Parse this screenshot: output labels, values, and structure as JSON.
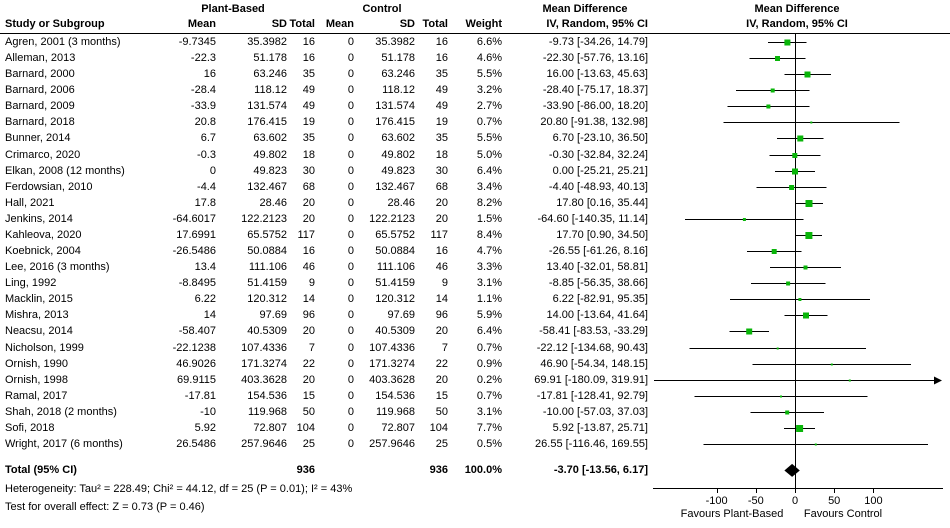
{
  "header": {
    "group_plant_based": "Plant-Based",
    "group_control": "Control",
    "md_text_title": "Mean Difference",
    "md_text_sub": "IV, Random, 95% CI",
    "md_plot_title": "Mean Difference",
    "md_plot_sub": "IV, Random, 95% CI",
    "study": "Study or Subgroup",
    "mean": "Mean",
    "sd": "SD",
    "total": "Total",
    "weight": "Weight"
  },
  "footer": {
    "total_label": "Total (95% CI)",
    "total_pb": "936",
    "total_c": "936",
    "total_weight": "100.0%",
    "total_md": "-3.70 [-13.56, 6.17]",
    "heterogeneity": "Heterogeneity: Tau² = 228.49; Chi² = 44.12, df = 25 (P = 0.01); I² = 43%",
    "overall_effect": "Test for overall effect: Z = 0.73 (P = 0.46)"
  },
  "chart_data": {
    "type": "forest",
    "title": "Mean Difference, IV, Random, 95% CI",
    "axis": {
      "ticks": [
        -100,
        -50,
        0,
        50,
        100
      ],
      "favours_left": "Favours Plant-Based",
      "favours_right": "Favours Control"
    },
    "colors": {
      "square": "#0ab50a",
      "diamond": "#000000",
      "line": "#000000"
    },
    "studies": [
      {
        "name": "Agren, 2001 (3 months)",
        "pb_mean": "-9.7345",
        "pb_sd": "35.3982",
        "pb_total": "16",
        "c_mean": "0",
        "c_sd": "35.3982",
        "c_total": "16",
        "weight_pct": 6.6,
        "weight": "6.6%",
        "md": -9.73,
        "lo": -34.26,
        "hi": 14.79,
        "md_label": "-9.73 [-34.26, 14.79]"
      },
      {
        "name": "Alleman, 2013",
        "pb_mean": "-22.3",
        "pb_sd": "51.178",
        "pb_total": "16",
        "c_mean": "0",
        "c_sd": "51.178",
        "c_total": "16",
        "weight_pct": 4.6,
        "weight": "4.6%",
        "md": -22.3,
        "lo": -57.76,
        "hi": 13.16,
        "md_label": "-22.30 [-57.76, 13.16]"
      },
      {
        "name": "Barnard, 2000",
        "pb_mean": "16",
        "pb_sd": "63.246",
        "pb_total": "35",
        "c_mean": "0",
        "c_sd": "63.246",
        "c_total": "35",
        "weight_pct": 5.5,
        "weight": "5.5%",
        "md": 16.0,
        "lo": -13.63,
        "hi": 45.63,
        "md_label": "16.00 [-13.63, 45.63]"
      },
      {
        "name": "Barnard, 2006",
        "pb_mean": "-28.4",
        "pb_sd": "118.12",
        "pb_total": "49",
        "c_mean": "0",
        "c_sd": "118.12",
        "c_total": "49",
        "weight_pct": 3.2,
        "weight": "3.2%",
        "md": -28.4,
        "lo": -75.17,
        "hi": 18.37,
        "md_label": "-28.40 [-75.17, 18.37]"
      },
      {
        "name": "Barnard, 2009",
        "pb_mean": "-33.9",
        "pb_sd": "131.574",
        "pb_total": "49",
        "c_mean": "0",
        "c_sd": "131.574",
        "c_total": "49",
        "weight_pct": 2.7,
        "weight": "2.7%",
        "md": -33.9,
        "lo": -86.0,
        "hi": 18.2,
        "md_label": "-33.90 [-86.00, 18.20]"
      },
      {
        "name": "Barnard, 2018",
        "pb_mean": "20.8",
        "pb_sd": "176.415",
        "pb_total": "19",
        "c_mean": "0",
        "c_sd": "176.415",
        "c_total": "19",
        "weight_pct": 0.7,
        "weight": "0.7%",
        "md": 20.8,
        "lo": -91.38,
        "hi": 132.98,
        "md_label": "20.80 [-91.38, 132.98]"
      },
      {
        "name": "Bunner, 2014",
        "pb_mean": "6.7",
        "pb_sd": "63.602",
        "pb_total": "35",
        "c_mean": "0",
        "c_sd": "63.602",
        "c_total": "35",
        "weight_pct": 5.5,
        "weight": "5.5%",
        "md": 6.7,
        "lo": -23.1,
        "hi": 36.5,
        "md_label": "6.70 [-23.10, 36.50]"
      },
      {
        "name": "Crimarco, 2020",
        "pb_mean": "-0.3",
        "pb_sd": "49.802",
        "pb_total": "18",
        "c_mean": "0",
        "c_sd": "49.802",
        "c_total": "18",
        "weight_pct": 5.0,
        "weight": "5.0%",
        "md": -0.3,
        "lo": -32.84,
        "hi": 32.24,
        "md_label": "-0.30 [-32.84, 32.24]"
      },
      {
        "name": "Elkan, 2008 (12 months)",
        "pb_mean": "0",
        "pb_sd": "49.823",
        "pb_total": "30",
        "c_mean": "0",
        "c_sd": "49.823",
        "c_total": "30",
        "weight_pct": 6.4,
        "weight": "6.4%",
        "md": 0.0,
        "lo": -25.21,
        "hi": 25.21,
        "md_label": "0.00 [-25.21, 25.21]"
      },
      {
        "name": "Ferdowsian, 2010",
        "pb_mean": "-4.4",
        "pb_sd": "132.467",
        "pb_total": "68",
        "c_mean": "0",
        "c_sd": "132.467",
        "c_total": "68",
        "weight_pct": 3.4,
        "weight": "3.4%",
        "md": -4.4,
        "lo": -48.93,
        "hi": 40.13,
        "md_label": "-4.40 [-48.93, 40.13]"
      },
      {
        "name": "Hall, 2021",
        "pb_mean": "17.8",
        "pb_sd": "28.46",
        "pb_total": "20",
        "c_mean": "0",
        "c_sd": "28.46",
        "c_total": "20",
        "weight_pct": 8.2,
        "weight": "8.2%",
        "md": 17.8,
        "lo": 0.16,
        "hi": 35.44,
        "md_label": "17.80 [0.16, 35.44]"
      },
      {
        "name": "Jenkins, 2014",
        "pb_mean": "-64.6017",
        "pb_sd": "122.2123",
        "pb_total": "20",
        "c_mean": "0",
        "c_sd": "122.2123",
        "c_total": "20",
        "weight_pct": 1.5,
        "weight": "1.5%",
        "md": -64.6,
        "lo": -140.35,
        "hi": 11.14,
        "md_label": "-64.60 [-140.35, 11.14]"
      },
      {
        "name": "Kahleova, 2020",
        "pb_mean": "17.6991",
        "pb_sd": "65.5752",
        "pb_total": "117",
        "c_mean": "0",
        "c_sd": "65.5752",
        "c_total": "117",
        "weight_pct": 8.4,
        "weight": "8.4%",
        "md": 17.7,
        "lo": 0.9,
        "hi": 34.5,
        "md_label": "17.70 [0.90, 34.50]"
      },
      {
        "name": "Koebnick, 2004",
        "pb_mean": "-26.5486",
        "pb_sd": "50.0884",
        "pb_total": "16",
        "c_mean": "0",
        "c_sd": "50.0884",
        "c_total": "16",
        "weight_pct": 4.7,
        "weight": "4.7%",
        "md": -26.55,
        "lo": -61.26,
        "hi": 8.16,
        "md_label": "-26.55 [-61.26, 8.16]"
      },
      {
        "name": "Lee, 2016 (3 months)",
        "pb_mean": "13.4",
        "pb_sd": "111.106",
        "pb_total": "46",
        "c_mean": "0",
        "c_sd": "111.106",
        "c_total": "46",
        "weight_pct": 3.3,
        "weight": "3.3%",
        "md": 13.4,
        "lo": -32.01,
        "hi": 58.81,
        "md_label": "13.40 [-32.01, 58.81]"
      },
      {
        "name": "Ling, 1992",
        "pb_mean": "-8.8495",
        "pb_sd": "51.4159",
        "pb_total": "9",
        "c_mean": "0",
        "c_sd": "51.4159",
        "c_total": "9",
        "weight_pct": 3.1,
        "weight": "3.1%",
        "md": -8.85,
        "lo": -56.35,
        "hi": 38.66,
        "md_label": "-8.85 [-56.35, 38.66]"
      },
      {
        "name": "Macklin, 2015",
        "pb_mean": "6.22",
        "pb_sd": "120.312",
        "pb_total": "14",
        "c_mean": "0",
        "c_sd": "120.312",
        "c_total": "14",
        "weight_pct": 1.1,
        "weight": "1.1%",
        "md": 6.22,
        "lo": -82.91,
        "hi": 95.35,
        "md_label": "6.22 [-82.91, 95.35]"
      },
      {
        "name": "Mishra, 2013",
        "pb_mean": "14",
        "pb_sd": "97.69",
        "pb_total": "96",
        "c_mean": "0",
        "c_sd": "97.69",
        "c_total": "96",
        "weight_pct": 5.9,
        "weight": "5.9%",
        "md": 14.0,
        "lo": -13.64,
        "hi": 41.64,
        "md_label": "14.00 [-13.64, 41.64]"
      },
      {
        "name": "Neacsu, 2014",
        "pb_mean": "-58.407",
        "pb_sd": "40.5309",
        "pb_total": "20",
        "c_mean": "0",
        "c_sd": "40.5309",
        "c_total": "20",
        "weight_pct": 6.4,
        "weight": "6.4%",
        "md": -58.41,
        "lo": -83.53,
        "hi": -33.29,
        "md_label": "-58.41 [-83.53, -33.29]"
      },
      {
        "name": "Nicholson, 1999",
        "pb_mean": "-22.1238",
        "pb_sd": "107.4336",
        "pb_total": "7",
        "c_mean": "0",
        "c_sd": "107.4336",
        "c_total": "7",
        "weight_pct": 0.7,
        "weight": "0.7%",
        "md": -22.12,
        "lo": -134.68,
        "hi": 90.43,
        "md_label": "-22.12 [-134.68, 90.43]"
      },
      {
        "name": "Ornish, 1990",
        "pb_mean": "46.9026",
        "pb_sd": "171.3274",
        "pb_total": "22",
        "c_mean": "0",
        "c_sd": "171.3274",
        "c_total": "22",
        "weight_pct": 0.9,
        "weight": "0.9%",
        "md": 46.9,
        "lo": -54.34,
        "hi": 148.15,
        "md_label": "46.90 [-54.34, 148.15]"
      },
      {
        "name": "Ornish, 1998",
        "pb_mean": "69.9115",
        "pb_sd": "403.3628",
        "pb_total": "20",
        "c_mean": "0",
        "c_sd": "403.3628",
        "c_total": "20",
        "weight_pct": 0.2,
        "weight": "0.2%",
        "md": 69.91,
        "lo": -180.09,
        "hi": 319.91,
        "md_label": "69.91 [-180.09, 319.91]"
      },
      {
        "name": "Ramal, 2017",
        "pb_mean": "-17.81",
        "pb_sd": "154.536",
        "pb_total": "15",
        "c_mean": "0",
        "c_sd": "154.536",
        "c_total": "15",
        "weight_pct": 0.7,
        "weight": "0.7%",
        "md": -17.81,
        "lo": -128.41,
        "hi": 92.79,
        "md_label": "-17.81 [-128.41, 92.79]"
      },
      {
        "name": "Shah, 2018 (2 months)",
        "pb_mean": "-10",
        "pb_sd": "119.968",
        "pb_total": "50",
        "c_mean": "0",
        "c_sd": "119.968",
        "c_total": "50",
        "weight_pct": 3.1,
        "weight": "3.1%",
        "md": -10.0,
        "lo": -57.03,
        "hi": 37.03,
        "md_label": "-10.00 [-57.03, 37.03]"
      },
      {
        "name": "Sofi, 2018",
        "pb_mean": "5.92",
        "pb_sd": "72.807",
        "pb_total": "104",
        "c_mean": "0",
        "c_sd": "72.807",
        "c_total": "104",
        "weight_pct": 7.7,
        "weight": "7.7%",
        "md": 5.92,
        "lo": -13.87,
        "hi": 25.71,
        "md_label": "5.92 [-13.87, 25.71]"
      },
      {
        "name": "Wright, 2017 (6 months)",
        "pb_mean": "26.5486",
        "pb_sd": "257.9646",
        "pb_total": "25",
        "c_mean": "0",
        "c_sd": "257.9646",
        "c_total": "25",
        "weight_pct": 0.5,
        "weight": "0.5%",
        "md": 26.55,
        "lo": -116.46,
        "hi": 169.55,
        "md_label": "26.55 [-116.46, 169.55]"
      }
    ],
    "summary": {
      "md": -3.7,
      "lo": -13.56,
      "hi": 6.17
    }
  }
}
